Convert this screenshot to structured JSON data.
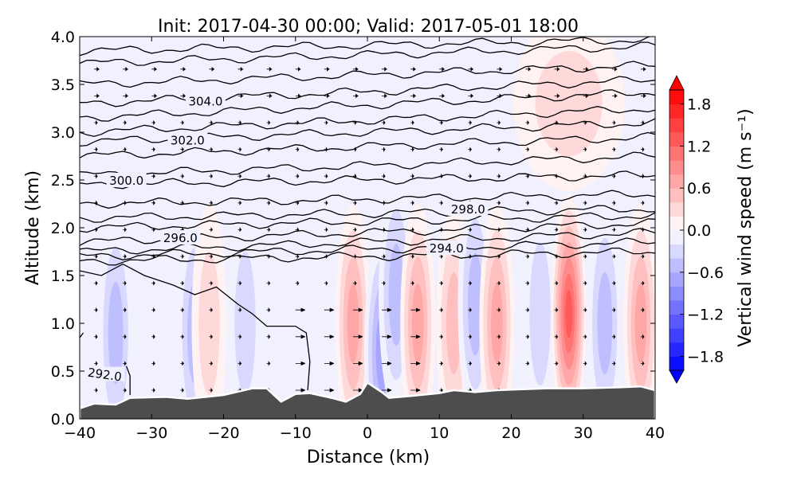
{
  "chart_data": {
    "type": "contour",
    "title": "Init: 2017-04-30 00:00; Valid: 2017-05-01 18:00",
    "xlabel": "Distance (km)",
    "ylabel": "Altitude (km)",
    "xlim": [
      -40,
      40
    ],
    "ylim": [
      0,
      4
    ],
    "xticks": [
      "−40",
      "−30",
      "−20",
      "−10",
      "0",
      "10",
      "20",
      "30",
      "40"
    ],
    "xtick_values": [
      -40,
      -30,
      -20,
      -10,
      0,
      10,
      20,
      30,
      40
    ],
    "yticks": [
      "0.0",
      "0.5",
      "1.0",
      "1.5",
      "2.0",
      "2.5",
      "3.0",
      "3.5",
      "4.0"
    ],
    "ytick_values": [
      0,
      0.5,
      1,
      1.5,
      2,
      2.5,
      3,
      3.5,
      4
    ],
    "grid": false,
    "colorbar": {
      "label": "Vertical wind speed (m s⁻¹)",
      "range": [
        -2.0,
        2.0
      ],
      "step": 0.2,
      "extend": "both",
      "colormap": "blue-white-red",
      "ticks": [
        "−1.8",
        "−1.2",
        "−0.6",
        "0.0",
        "0.6",
        "1.2",
        "1.8"
      ],
      "tick_values": [
        -1.8,
        -1.2,
        -0.6,
        0,
        0.6,
        1.2,
        1.8
      ],
      "colors": {
        "min": "#0000ff",
        "mid": "#ffffff",
        "max": "#ff0000"
      }
    },
    "terrain": {
      "color": "#4d4d4d",
      "x": [
        -40,
        -38,
        -35,
        -33,
        -28,
        -25,
        -20,
        -16,
        -14,
        -12,
        -10,
        -8,
        -5,
        -3,
        -1,
        0,
        2,
        3,
        6,
        10,
        12,
        15,
        18,
        25,
        30,
        35,
        38,
        40
      ],
      "z": [
        0.11,
        0.16,
        0.15,
        0.22,
        0.23,
        0.21,
        0.25,
        0.32,
        0.32,
        0.18,
        0.26,
        0.27,
        0.22,
        0.18,
        0.26,
        0.38,
        0.28,
        0.22,
        0.24,
        0.27,
        0.3,
        0.28,
        0.3,
        0.32,
        0.32,
        0.33,
        0.34,
        0.3
      ]
    },
    "vertical_wind_features": [
      {
        "x": -35,
        "z": 0.9,
        "w": -0.6
      },
      {
        "x": -24,
        "z": 0.9,
        "w": -0.6
      },
      {
        "x": -22,
        "z": 1.0,
        "w": 0.4
      },
      {
        "x": -17,
        "z": 1.0,
        "w": -0.4
      },
      {
        "x": -5,
        "z": 1.4,
        "w": -0.3
      },
      {
        "x": -2,
        "z": 1.0,
        "w": 0.8
      },
      {
        "x": 2,
        "z": 0.7,
        "w": -0.8
      },
      {
        "x": 4,
        "z": 1.3,
        "w": -0.6
      },
      {
        "x": 7,
        "z": 1.0,
        "w": 0.8
      },
      {
        "x": 12,
        "z": 1.0,
        "w": 0.6
      },
      {
        "x": 15,
        "z": 1.2,
        "w": -0.6
      },
      {
        "x": 18,
        "z": 1.0,
        "w": 0.8
      },
      {
        "x": 24,
        "z": 1.1,
        "w": -0.4
      },
      {
        "x": 28,
        "z": 1.1,
        "w": 1.4
      },
      {
        "x": 33,
        "z": 1.0,
        "w": -0.6
      },
      {
        "x": 38,
        "z": 1.0,
        "w": 0.8
      },
      {
        "x": 28,
        "z": 3.3,
        "w": 0.4
      }
    ],
    "isentropes": [
      {
        "theta": 292.0,
        "label": "292.0"
      },
      {
        "theta": 294.0,
        "label": "294.0"
      },
      {
        "theta": 296.0,
        "label": "296.0"
      },
      {
        "theta": 298.0,
        "label": "298.0"
      },
      {
        "theta": 300.0,
        "label": "300.0"
      },
      {
        "theta": 302.0,
        "label": "302.0"
      },
      {
        "theta": 304.0,
        "label": "304.0"
      }
    ]
  }
}
